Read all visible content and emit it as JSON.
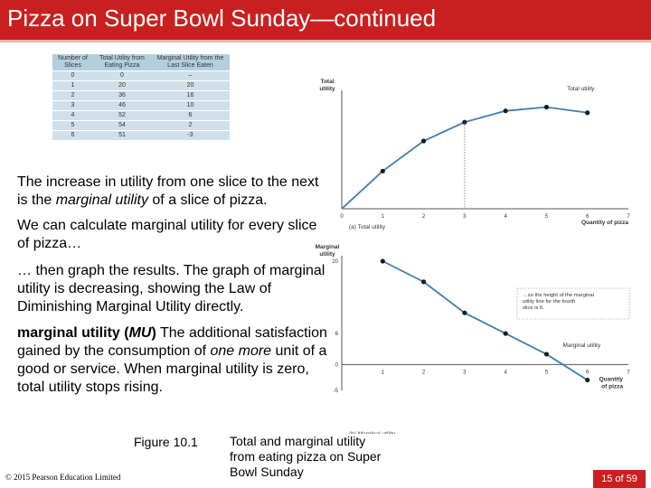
{
  "title": "Pizza on Super Bowl Sunday—continued",
  "table": {
    "headers": [
      "Number of Slices",
      "Total Utility from Eating Pizza",
      "Marginal Utility from the Last Slice Eaten"
    ],
    "rows": [
      [
        "0",
        "0",
        "–"
      ],
      [
        "1",
        "20",
        "20"
      ],
      [
        "2",
        "36",
        "16"
      ],
      [
        "3",
        "46",
        "10"
      ],
      [
        "4",
        "52",
        "6"
      ],
      [
        "5",
        "54",
        "2"
      ],
      [
        "6",
        "51",
        "-3"
      ]
    ]
  },
  "paragraphs": {
    "p1_a": "The increase in utility from one slice to the next is the ",
    "p1_em": "marginal utility",
    "p1_b": " of a slice of pizza.",
    "p2": "We can calculate marginal utility for every slice of pizza…",
    "p3": "… then graph the results. The graph of marginal utility is decreasing, showing the Law of Diminishing Marginal Utility directly.",
    "p4_term": "marginal utility (",
    "p4_abbr": "MU",
    "p4_close": ")",
    "p4_a": "  The additional satisfaction gained by the consumption of ",
    "p4_em": "one more",
    "p4_b": " unit of a good or service. When marginal utility is zero, total utility stops rising."
  },
  "figure_label": "Figure 10.1",
  "caption": "Total and marginal utility from eating pizza on Super Bowl Sunday",
  "copyright": "© 2015 Pearson Education Limited",
  "page_number": "15 of 59",
  "chart_data": [
    {
      "type": "line",
      "title": "(a) Total utility",
      "ylabel": "Total utility",
      "xlabel": "Quantity of pizza",
      "series_label": "Total utility",
      "x": [
        0,
        1,
        2,
        3,
        4,
        5,
        6
      ],
      "y": [
        0,
        20,
        36,
        46,
        52,
        54,
        51
      ],
      "xlim": [
        0,
        7
      ],
      "ylim": [
        0,
        60
      ],
      "xticks": [
        "0",
        "1",
        "2",
        "3",
        "4",
        "5",
        "6",
        "7"
      ],
      "dashed_at_x": 3
    },
    {
      "type": "line",
      "title": "(b) Marginal utility",
      "ylabel": "Marginal utility",
      "xlabel": "Quantity of pizza",
      "series_label": "Marginal utility",
      "x": [
        1,
        2,
        3,
        4,
        5,
        6
      ],
      "y": [
        20,
        16,
        10,
        6,
        2,
        -3
      ],
      "xlim": [
        0,
        7
      ],
      "ylim": [
        -5,
        20
      ],
      "xticks": [
        "1",
        "2",
        "3",
        "4",
        "5",
        "6",
        "7"
      ],
      "yticks": [
        "20",
        "6",
        "0",
        "-5"
      ],
      "annotation": "…so the height of the marginal utility line for the fourth slice is 6."
    }
  ],
  "colors": {
    "title_bg": "#c9201f",
    "line": "#3c7fb1",
    "marker": "#1b1b1b",
    "table_bg": "#cfe0ea"
  }
}
